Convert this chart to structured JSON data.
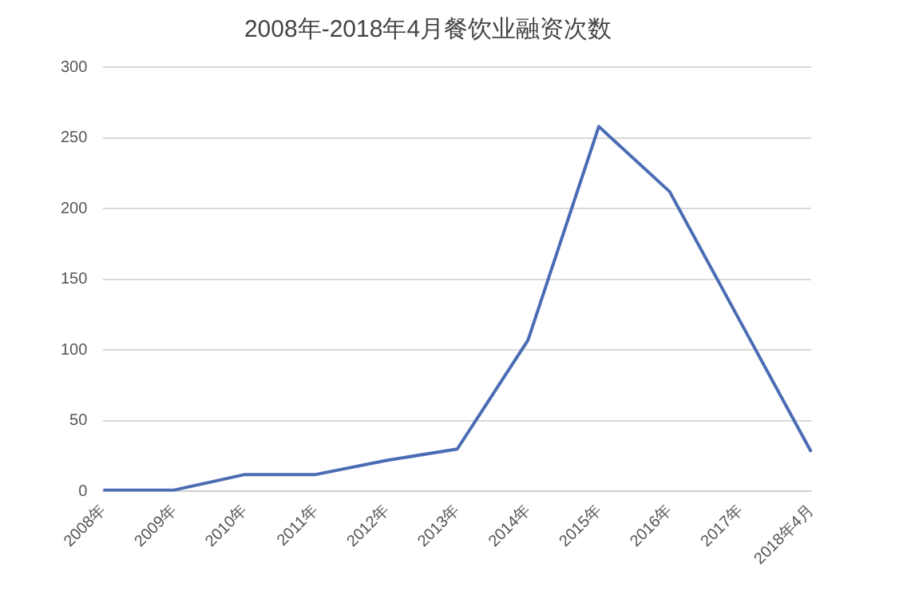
{
  "chart_data": {
    "type": "line",
    "title": "2008年-2018年4月餐饮业融资次数",
    "categories": [
      "2008年",
      "2009年",
      "2010年",
      "2011年",
      "2012年",
      "2013年",
      "2014年",
      "2015年",
      "2016年",
      "2017年",
      "2018年4月"
    ],
    "series": [
      {
        "color": "#4a6cb4",
        "values": [
          1,
          1,
          12,
          12,
          22,
          30,
          107,
          258,
          212,
          120,
          28
        ]
      }
    ],
    "ylim": [
      0,
      300
    ],
    "yticks": [
      0,
      50,
      100,
      150,
      200,
      250,
      300
    ],
    "grid": "y",
    "legend": false,
    "marker": "none",
    "line_style": "solid"
  }
}
